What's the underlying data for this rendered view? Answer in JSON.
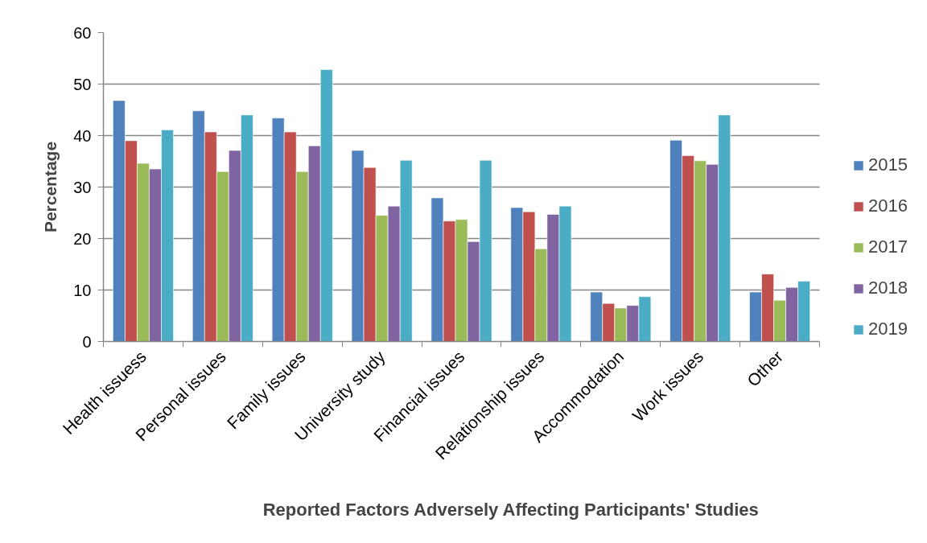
{
  "chart_data": {
    "type": "bar",
    "xlabel": "Reported Factors Adversely Affecting Participants' Studies",
    "ylabel": "Percentage",
    "categories": [
      "Health issuess",
      "Personal issues",
      "Family issues",
      "University study",
      "Financial issues",
      "Relationship issues",
      "Accommodation",
      "Work issues",
      "Other"
    ],
    "series": [
      {
        "name": "2015",
        "color": "#4f81bd",
        "values": [
          46.8,
          44.8,
          43.4,
          37.1,
          27.9,
          26.0,
          9.6,
          39.1,
          9.6
        ]
      },
      {
        "name": "2016",
        "color": "#c0504d",
        "values": [
          39.0,
          40.7,
          40.7,
          33.8,
          23.4,
          25.2,
          7.4,
          36.1,
          13.1
        ]
      },
      {
        "name": "2017",
        "color": "#9bbb59",
        "values": [
          34.6,
          33.0,
          33.0,
          24.5,
          23.7,
          18.0,
          6.5,
          35.1,
          8.0
        ]
      },
      {
        "name": "2018",
        "color": "#8064a2",
        "values": [
          33.5,
          37.1,
          38.0,
          26.3,
          19.4,
          24.7,
          7.0,
          34.4,
          10.5
        ]
      },
      {
        "name": "2019",
        "color": "#4bacc6",
        "values": [
          41.1,
          44.0,
          52.8,
          35.2,
          35.2,
          26.3,
          8.7,
          44.0,
          11.7
        ]
      }
    ],
    "ylim": [
      0,
      60
    ],
    "yticks": [
      0,
      10,
      20,
      30,
      40,
      50,
      60
    ],
    "grid": "y",
    "legend": "right"
  }
}
